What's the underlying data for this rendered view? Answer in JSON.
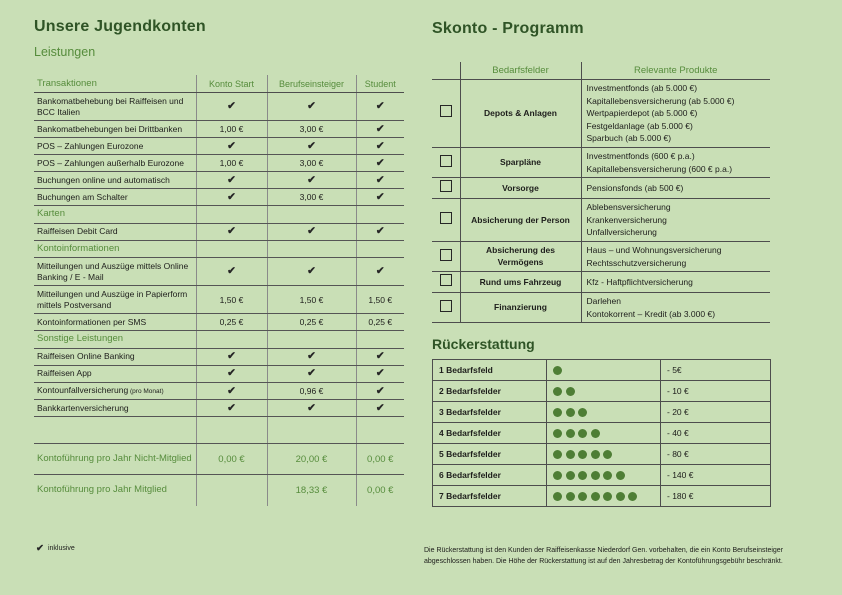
{
  "colors": {
    "background": "#c9dfb6",
    "heading_dark_green": "#2f5426",
    "accent_green": "#568c3c",
    "check_mark": "#262626",
    "dot_green": "#4e7e35",
    "grid_line": "#4d4d4d"
  },
  "left": {
    "title": "Unsere Jugendkonten",
    "subtitle": "Leistungen",
    "table": {
      "headers": [
        "Transaktionen",
        "Konto Start",
        "Berufseinsteiger",
        "Student"
      ],
      "check_symbol": "✔",
      "rows": [
        {
          "type": "item",
          "label": "Bankomatbehebung bei Raiffeisen und BCC Italien",
          "cells": [
            "check",
            "check",
            "check"
          ]
        },
        {
          "type": "item",
          "label": "Bankomatbehebungen bei Drittbanken",
          "cells": [
            "1,00 €",
            "3,00 €",
            "check"
          ]
        },
        {
          "type": "item",
          "label": "POS – Zahlungen Eurozone",
          "cells": [
            "check",
            "check",
            "check"
          ]
        },
        {
          "type": "item",
          "label": "POS – Zahlungen außerhalb Eurozone",
          "cells": [
            "1,00 €",
            "3,00 €",
            "check"
          ]
        },
        {
          "type": "item",
          "label": "Buchungen online und automatisch",
          "cells": [
            "check",
            "check",
            "check"
          ]
        },
        {
          "type": "item",
          "label": "Buchungen am Schalter",
          "cells": [
            "check",
            "3,00 €",
            "check"
          ]
        },
        {
          "type": "section",
          "label": "Karten",
          "cells": [
            "",
            "",
            ""
          ]
        },
        {
          "type": "item",
          "label": "Raiffeisen Debit Card",
          "cells": [
            "check",
            "check",
            "check"
          ]
        },
        {
          "type": "section",
          "label": "Kontoinformationen",
          "cells": [
            "",
            "",
            ""
          ]
        },
        {
          "type": "item",
          "label": "Mitteilungen und Auszüge mittels Online Banking / E - Mail",
          "cells": [
            "check",
            "check",
            "check"
          ]
        },
        {
          "type": "item",
          "label": "Mitteilungen und Auszüge in Papierform mittels Postversand",
          "cells": [
            "1,50 €",
            "1,50 €",
            "1,50 €"
          ]
        },
        {
          "type": "item",
          "label": "Kontoinformationen per SMS",
          "cells": [
            "0,25 €",
            "0,25 €",
            "0,25 €"
          ]
        },
        {
          "type": "section",
          "label": "Sonstige Leistungen",
          "cells": [
            "",
            "",
            ""
          ]
        },
        {
          "type": "item",
          "label": "Raiffeisen Online Banking",
          "cells": [
            "check",
            "check",
            "check"
          ]
        },
        {
          "type": "item",
          "label": "Raiffeisen App",
          "cells": [
            "check",
            "check",
            "check"
          ]
        },
        {
          "type": "item",
          "label": "Kontounfallversicherung",
          "note": "(pro Monat)",
          "cells": [
            "check",
            "0,96 €",
            "check"
          ]
        },
        {
          "type": "item",
          "label": "Bankkartenversicherung",
          "cells": [
            "check",
            "check",
            "check"
          ]
        },
        {
          "type": "spacer",
          "label": "",
          "cells": [
            "",
            "",
            ""
          ]
        },
        {
          "type": "fee",
          "label": "Kontoführung pro Jahr Nicht-Mitglied",
          "cells": [
            "0,00 €",
            "20,00 €",
            "0,00 €"
          ]
        },
        {
          "type": "fee",
          "label": "Kontoführung pro Jahr Mitglied",
          "cells": [
            "",
            "18,33 €",
            "0,00 €"
          ]
        }
      ]
    },
    "legend": {
      "label": "inklusive"
    }
  },
  "right": {
    "title": "Skonto - Programm",
    "needs_table": {
      "headers": [
        "Bedarfsfelder",
        "Relevante Produkte"
      ],
      "rows": [
        {
          "field": "Depots & Anlagen",
          "products": [
            "Investmentfonds (ab 5.000 €)",
            "Kapitallebensversicherung (ab 5.000 €)",
            "Wertpapierdepot (ab 5.000 €)",
            "Festgeldanlage (ab 5.000 €)",
            "Sparbuch (ab 5.000 €)"
          ]
        },
        {
          "field": "Sparpläne",
          "products": [
            "Investmentfonds (600 € p.a.)",
            "Kapitallebensversicherung (600 € p.a.)"
          ]
        },
        {
          "field": "Vorsorge",
          "products": [
            "Pensionsfonds (ab 500 €)"
          ]
        },
        {
          "field": "Absicherung der Person",
          "products": [
            "Ablebensversicherung",
            "Krankenversicherung",
            "Unfallversicherung"
          ]
        },
        {
          "field": "Absicherung des Vermögens",
          "products": [
            "Haus – und Wohnungsversicherung",
            "Rechtsschutzversicherung"
          ]
        },
        {
          "field": "Rund ums Fahrzeug",
          "products": [
            "Kfz - Haftpflichtversicherung"
          ]
        },
        {
          "field": "Finanzierung",
          "products": [
            "Darlehen",
            "Kontokorrent – Kredit (ab 3.000 €)"
          ]
        }
      ]
    },
    "refund": {
      "title": "Rückerstattung",
      "rows": [
        {
          "label": "1 Bedarfsfeld",
          "dots": 1,
          "amount": "- 5€"
        },
        {
          "label": "2 Bedarfsfelder",
          "dots": 2,
          "amount": "- 10 €"
        },
        {
          "label": "3 Bedarfsfelder",
          "dots": 3,
          "amount": "- 20 €"
        },
        {
          "label": "4 Bedarfsfelder",
          "dots": 4,
          "amount": "- 40 €"
        },
        {
          "label": "5 Bedarfsfelder",
          "dots": 5,
          "amount": "- 80 €"
        },
        {
          "label": "6 Bedarfsfelder",
          "dots": 6,
          "amount": "- 140 €"
        },
        {
          "label": "7 Bedarfsfelder",
          "dots": 7,
          "amount": "- 180 €"
        }
      ]
    },
    "footnote": "Die Rückerstattung ist den Kunden der Raiffeisenkasse Niederdorf Gen. vorbehalten, die ein Konto Berufseinsteiger abgeschlossen haben. Die Höhe der Rückerstattung ist auf den Jahresbetrag der Kontoführungsgebühr beschränkt."
  }
}
